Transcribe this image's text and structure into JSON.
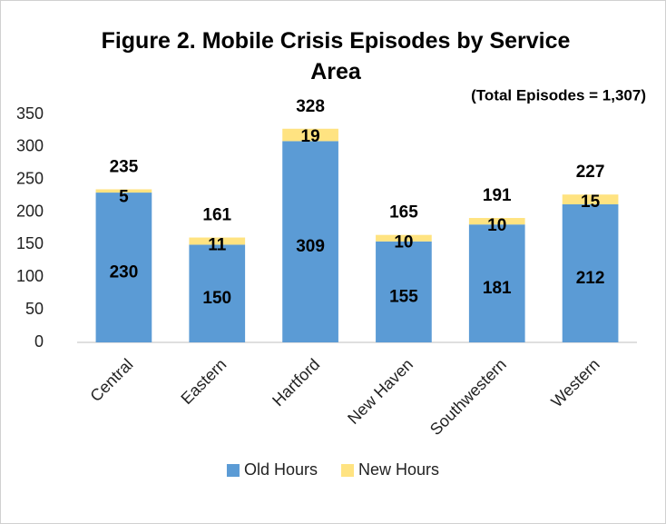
{
  "chart_data": {
    "type": "stacked_bar",
    "title": "Figure 2. Mobile Crisis Episodes by Service Area",
    "annotation": "(Total Episodes = 1,307)",
    "categories": [
      "Central",
      "Eastern",
      "Hartford",
      "New Haven",
      "Southwestern",
      "Western"
    ],
    "series": [
      {
        "name": "Old Hours",
        "color": "#5b9bd5",
        "values": [
          230,
          150,
          309,
          155,
          181,
          212
        ]
      },
      {
        "name": "New Hours",
        "color": "#ffe381",
        "values": [
          5,
          11,
          19,
          10,
          10,
          15
        ]
      }
    ],
    "totals": [
      235,
      161,
      328,
      165,
      191,
      227
    ],
    "ylim": [
      0,
      350
    ],
    "yticks": [
      0,
      50,
      100,
      150,
      200,
      250,
      300,
      350
    ],
    "grid": false,
    "legend": "bottom"
  }
}
